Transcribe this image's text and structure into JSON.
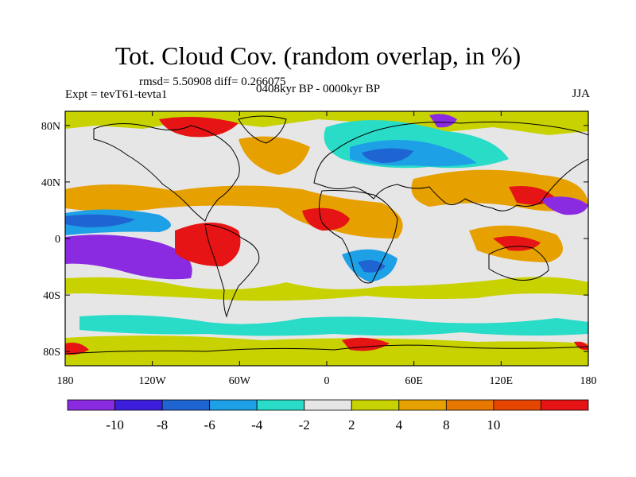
{
  "title": "Tot. Cloud Cov. (random overlap, in %)",
  "stats_line": "rmsd= 5.50908  diff= 0.266075",
  "experiment_line": "Expt = tevT61-tevta1",
  "period_line": "0408kyr BP - 0000kyr BP",
  "season": "JJA",
  "axes": {
    "x": {
      "range": [
        -180,
        180
      ],
      "ticks": [
        {
          "v": -180,
          "label": "180"
        },
        {
          "v": -120,
          "label": "120W"
        },
        {
          "v": -60,
          "label": "60W"
        },
        {
          "v": 0,
          "label": "0"
        },
        {
          "v": 60,
          "label": "60E"
        },
        {
          "v": 120,
          "label": "120E"
        },
        {
          "v": 180,
          "label": "180"
        }
      ]
    },
    "y": {
      "range": [
        -90,
        90
      ],
      "ticks": [
        {
          "v": 80,
          "label": "80N"
        },
        {
          "v": 40,
          "label": "40N"
        },
        {
          "v": 0,
          "label": "0"
        },
        {
          "v": -40,
          "label": "40S"
        },
        {
          "v": -80,
          "label": "80S"
        }
      ]
    }
  },
  "colorbar": {
    "colors": [
      "#8a2be2",
      "#3c1edc",
      "#1e64d2",
      "#1ea0e6",
      "#28dcc8",
      "#e6e6e6",
      "#c8d200",
      "#e6a000",
      "#e67800",
      "#e64600",
      "#e61414"
    ],
    "labels": [
      "-10",
      "-8",
      "-6",
      "-4",
      "-2",
      "2",
      "4",
      "8",
      "10"
    ]
  },
  "background_color": "#e6e6e6"
}
